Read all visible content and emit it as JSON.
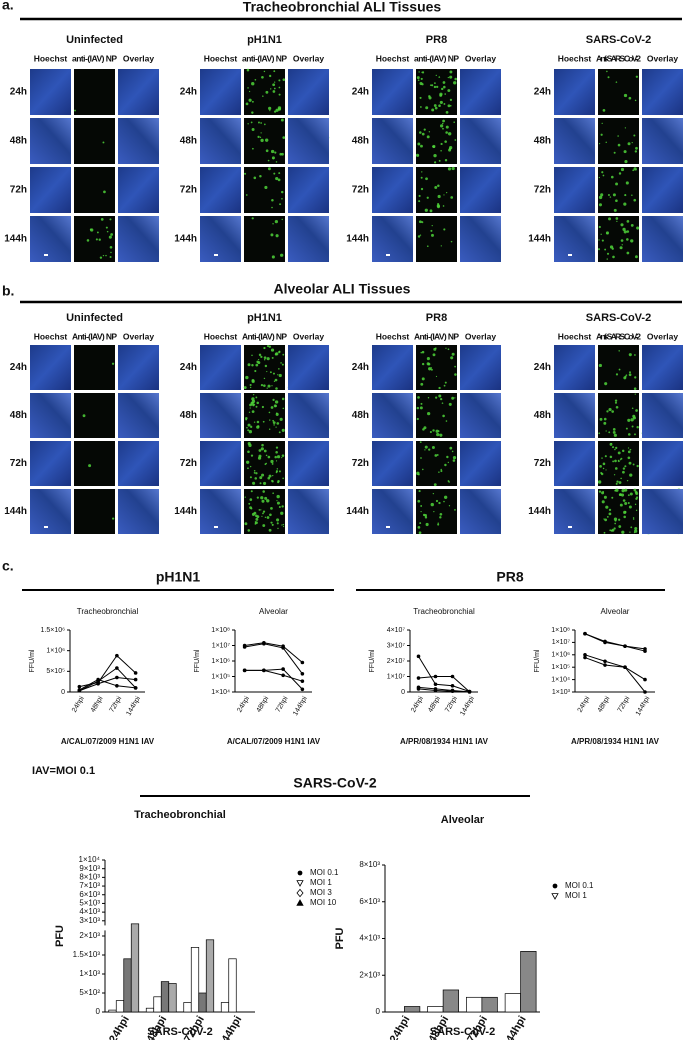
{
  "figure": {
    "panels": [
      {
        "label": "a.",
        "title": "Tracheobronchial ALI Tissues",
        "groups": [
          {
            "name": "Uninfected",
            "columns": [
              "Hoechst",
              "anti-(IAV) NP",
              "Overlay"
            ],
            "rows": [
              "24h",
              "48h",
              "72h",
              "144h"
            ]
          },
          {
            "name": "pH1N1",
            "columns": [
              "Hoechst",
              "anti-(IAV) NP",
              "Overlay"
            ],
            "rows": [
              "24h",
              "48h",
              "72h",
              "144h"
            ]
          },
          {
            "name": "PR8",
            "columns": [
              "Hoechst",
              "anti-(IAV) NP",
              "Overlay"
            ],
            "rows": [
              "24h",
              "48h",
              "72h",
              "144h"
            ]
          },
          {
            "name": "SARS-CoV-2",
            "columns": [
              "Hoechst",
              "Anti-SARS CoV-2",
              "Overlay"
            ],
            "rows": [
              "24h",
              "48h",
              "72h",
              "144h"
            ]
          }
        ]
      },
      {
        "label": "b.",
        "title": "Alveolar ALI Tissues",
        "groups": [
          {
            "name": "Uninfected",
            "columns": [
              "Hoechst",
              "Anti-(IAV) NP",
              "Overlay"
            ],
            "rows": [
              "24h",
              "48h",
              "72h",
              "144h"
            ]
          },
          {
            "name": "pH1N1",
            "columns": [
              "Hoechst",
              "Anti-(IAV) NP",
              "Overlay"
            ],
            "rows": [
              "24h",
              "48h",
              "72h",
              "144h"
            ]
          },
          {
            "name": "PR8",
            "columns": [
              "Hoechst",
              "Anti-(IAV) NP",
              "Overlay"
            ],
            "rows": [
              "24h",
              "48h",
              "72h",
              "144h"
            ]
          },
          {
            "name": "SARS-CoV-2",
            "columns": [
              "Hoechst",
              "Anti-SARS CoV-2",
              "Overlay"
            ],
            "rows": [
              "24h",
              "48h",
              "72h",
              "144h"
            ]
          }
        ]
      }
    ],
    "panel_c": {
      "label": "c.",
      "headers": [
        "pH1N1",
        "PR8"
      ],
      "note": "IAV=MOI 0.1",
      "sars_header": "SARS-CoV-2"
    }
  },
  "chart_data": [
    {
      "type": "line",
      "title": "Tracheobronchial",
      "categories": [
        "24hpi",
        "48hpi",
        "72hpi",
        "144hpi"
      ],
      "xlabel": "A/CAL/07/2009 H1N1 IAV",
      "ylabel": "FFU/ml",
      "log_scale": false,
      "color": "#000000",
      "ylim": [
        0,
        1500000
      ],
      "yticks": [
        0,
        {
          "value": 500000,
          "label": "5×10⁵"
        },
        {
          "value": 1000000,
          "label": "1×10⁶"
        },
        {
          "value": 1500000,
          "label": "1.5×10⁶"
        }
      ],
      "series": [
        {
          "values": [
            130000,
            230000,
            880000,
            460000
          ]
        },
        {
          "values": [
            30000,
            260000,
            580000,
            100000
          ]
        },
        {
          "values": [
            50000,
            300000,
            150000,
            100000
          ]
        },
        {
          "values": [
            30000,
            200000,
            350000,
            300000
          ]
        }
      ]
    },
    {
      "type": "line",
      "title": "Alveolar",
      "categories": [
        "24hpi",
        "48hpi",
        "72hpi",
        "144hpi"
      ],
      "xlabel": "A/CAL/07/2009 H1N1 IAV",
      "ylabel": "FFU/ml",
      "log_scale": true,
      "color": "#000000",
      "ylim": [
        10000,
        100000000
      ],
      "yticks": [
        {
          "value": 10000,
          "label": "1×10⁴"
        },
        {
          "value": 100000,
          "label": "1×10⁵"
        },
        {
          "value": 1000000,
          "label": "1×10⁶"
        },
        {
          "value": 10000000,
          "label": "1×10⁷"
        },
        {
          "value": 100000000,
          "label": "1×10⁸"
        }
      ],
      "series": [
        {
          "values": [
            8000000,
            13000000,
            7000000,
            150000
          ]
        },
        {
          "values": [
            10000000,
            15000000,
            9000000,
            800000
          ]
        },
        {
          "values": [
            250000,
            250000,
            300000,
            15000
          ]
        },
        {
          "values": [
            250000,
            250000,
            120000,
            50000
          ]
        }
      ]
    },
    {
      "type": "line",
      "title": "Tracheobronchial",
      "categories": [
        "24hpi",
        "48hpi",
        "72hpi",
        "144hpi"
      ],
      "xlabel": "A/PR/08/1934 H1N1 IAV",
      "ylabel": "FFU/ml",
      "log_scale": false,
      "color": "#000000",
      "ylim": [
        0,
        40000000
      ],
      "yticks": [
        0,
        {
          "value": 10000000,
          "label": "1×10⁷"
        },
        {
          "value": 20000000,
          "label": "2×10⁷"
        },
        {
          "value": 30000000,
          "label": "3×10⁷"
        },
        {
          "value": 40000000,
          "label": "4×10⁷"
        }
      ],
      "series": [
        {
          "values": [
            23000000,
            5000000,
            4000000,
            300000
          ]
        },
        {
          "values": [
            9000000,
            10000000,
            10000000,
            200000
          ]
        },
        {
          "values": [
            3000000,
            2000000,
            1000000,
            100000
          ]
        },
        {
          "values": [
            2000000,
            1000000,
            500000,
            100000
          ]
        }
      ]
    },
    {
      "type": "line",
      "title": "Alveolar",
      "categories": [
        "24hpi",
        "48hpi",
        "72hpi",
        "144hpi"
      ],
      "xlabel": "A/PR/08/1934 H1N1 IAV",
      "ylabel": "FFU/ml",
      "log_scale": true,
      "color": "#000000",
      "ylim": [
        1000,
        100000000
      ],
      "yticks": [
        {
          "value": 1000,
          "label": "1×10³"
        },
        {
          "value": 10000,
          "label": "1×10⁴"
        },
        {
          "value": 100000,
          "label": "1×10⁵"
        },
        {
          "value": 1000000,
          "label": "1×10⁶"
        },
        {
          "value": 10000000,
          "label": "1×10⁷"
        },
        {
          "value": 100000000,
          "label": "1×10⁸"
        }
      ],
      "series": [
        {
          "values": [
            50000000,
            12000000,
            5000000,
            2000000
          ]
        },
        {
          "values": [
            50000000,
            10000000,
            5000000,
            3000000
          ]
        },
        {
          "values": [
            1000000,
            300000,
            100000,
            10000
          ]
        },
        {
          "values": [
            600000,
            150000,
            100000,
            1000
          ]
        }
      ]
    },
    {
      "type": "bar",
      "title": "Tracheobronchial",
      "categories": [
        "24hpi",
        "48hpi",
        "72hpi",
        "144hpi"
      ],
      "xlabel": "SARS-CoV-2",
      "ylabel": "PFU",
      "axis_break": true,
      "ylim": [
        0,
        10000
      ],
      "yticks": [
        0,
        {
          "value": 500,
          "label": "5×10²"
        },
        {
          "value": 1000,
          "label": "1×10³"
        },
        {
          "value": 1500,
          "label": "1.5×10³"
        },
        {
          "value": 2000,
          "label": "2×10³"
        },
        {
          "value": 3000,
          "label": "3×10³"
        },
        {
          "value": 4000,
          "label": "4×10³"
        },
        {
          "value": 5000,
          "label": "5×10³"
        },
        {
          "value": 6000,
          "label": "6×10³"
        },
        {
          "value": 7000,
          "label": "7×10³"
        },
        {
          "value": 8000,
          "label": "8×10³"
        },
        {
          "value": 9000,
          "label": "9×10³"
        },
        {
          "value": 10000,
          "label": "1×10⁴"
        }
      ],
      "series": [
        {
          "name": "MOI 0.1",
          "color": "#ffffff",
          "marker": "circle",
          "values": [
            50,
            100,
            250,
            250
          ]
        },
        {
          "name": "MOI 1",
          "color": "#ffffff",
          "marker": "triangle-down",
          "values": [
            300,
            400,
            1700,
            1400
          ]
        },
        {
          "name": "MOI 3",
          "color": "#777777",
          "marker": "diamond",
          "values": [
            1400,
            800,
            500,
            0
          ]
        },
        {
          "name": "MOI 10",
          "color": "#aaaaaa",
          "marker": "triangle-up",
          "values": [
            2800,
            750,
            1900,
            0
          ]
        }
      ]
    },
    {
      "type": "bar",
      "title": "Alveolar",
      "categories": [
        "24hpi",
        "48hpi",
        "72hpi",
        "144hpi"
      ],
      "xlabel": "SARS-CoV-2",
      "ylabel": "PFU",
      "axis_break": false,
      "ylim": [
        0,
        8000
      ],
      "yticks": [
        0,
        {
          "value": 2000,
          "label": "2×10³"
        },
        {
          "value": 4000,
          "label": "4×10³"
        },
        {
          "value": 6000,
          "label": "6×10³"
        },
        {
          "value": 8000,
          "label": "8×10³"
        }
      ],
      "series": [
        {
          "name": "MOI 0.1",
          "color": "#ffffff",
          "marker": "circle",
          "values": [
            0,
            300,
            800,
            1000
          ]
        },
        {
          "name": "MOI 1",
          "color": "#888888",
          "marker": "triangle-down",
          "values": [
            300,
            1200,
            800,
            3300
          ]
        }
      ]
    }
  ]
}
